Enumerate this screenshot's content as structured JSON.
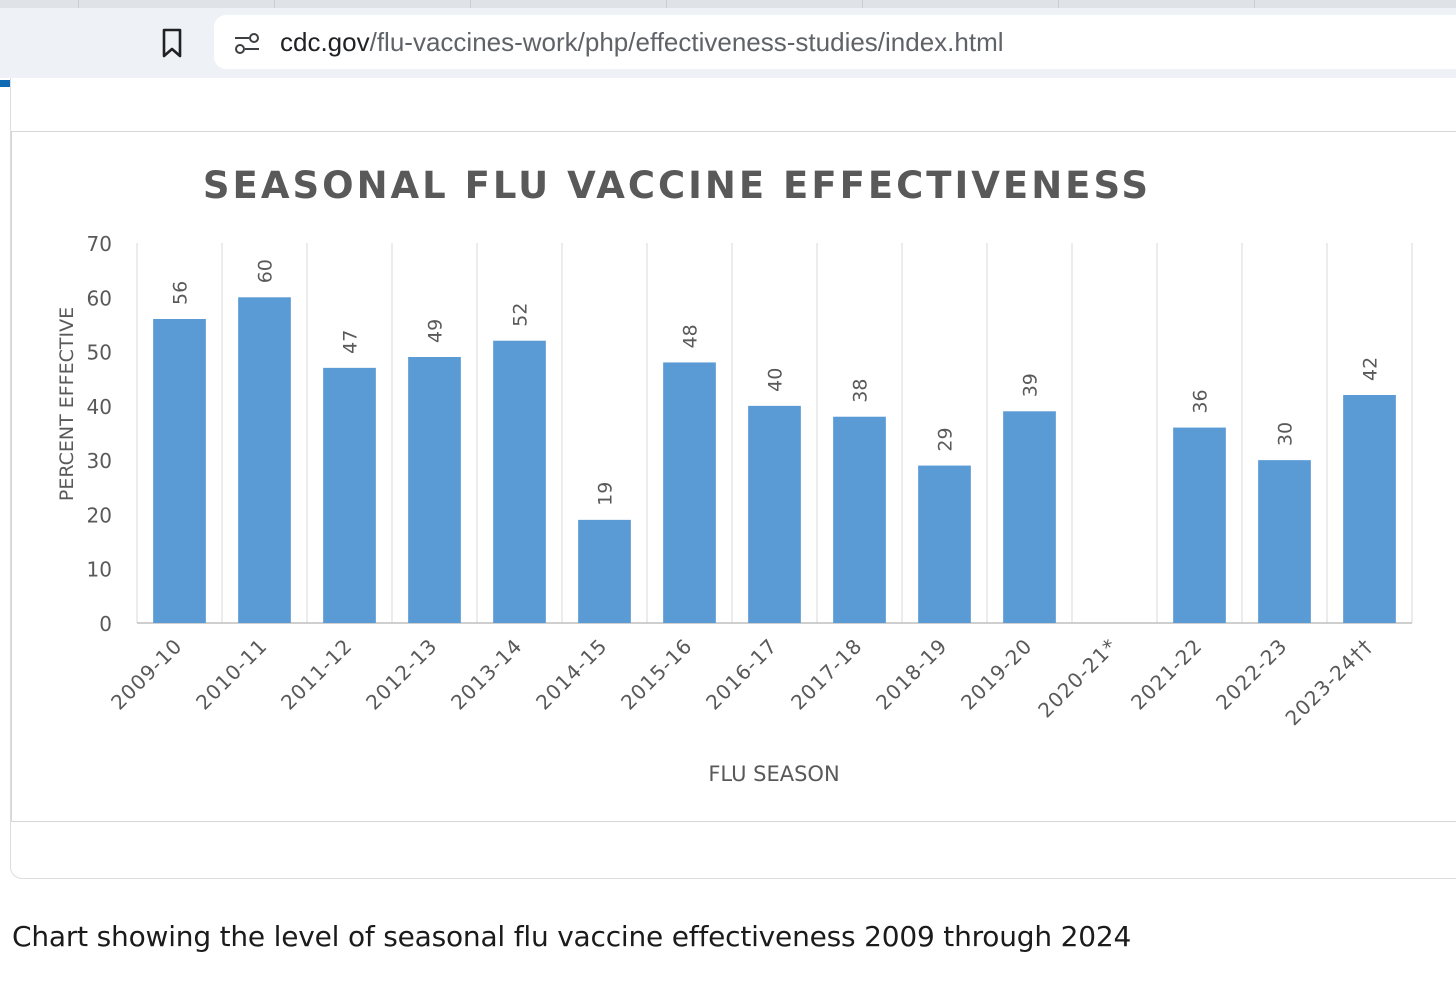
{
  "browser": {
    "url_host": "cdc.gov",
    "url_path": "/flu-vaccines-work/php/effectiveness-studies/index.html",
    "icons": [
      "bookmark-icon",
      "site-info-icon"
    ]
  },
  "caption": "Chart showing the level of seasonal flu vaccine effectiveness 2009 through 2024",
  "colors": {
    "bar": "#5b9bd5",
    "progress": "#0e6ab3"
  },
  "chart_data": {
    "type": "bar",
    "title": "SEASONAL FLU VACCINE EFFECTIVENESS",
    "xlabel": "FLU SEASON",
    "ylabel": "PERCENT EFFECTIVE",
    "ylim": [
      0,
      70
    ],
    "yticks": [
      "0",
      "10",
      "20",
      "30",
      "40",
      "50",
      "60",
      "70"
    ],
    "grid": "vertical",
    "categories": [
      "2009-10",
      "2010-11",
      "2011-12",
      "2012-13",
      "2013-14",
      "2014-15",
      "2015-16",
      "2016-17",
      "2017-18",
      "2018-19",
      "2019-20",
      "2020-21*",
      "2021-22",
      "2022-23",
      "2023-24††"
    ],
    "values": [
      56,
      60,
      47,
      49,
      52,
      19,
      48,
      40,
      38,
      29,
      39,
      null,
      36,
      30,
      42
    ],
    "labels": [
      "56",
      "60",
      "47",
      "49",
      "52",
      "19",
      "48",
      "40",
      "38",
      "29",
      "39",
      "",
      "36",
      "30",
      "42"
    ]
  }
}
